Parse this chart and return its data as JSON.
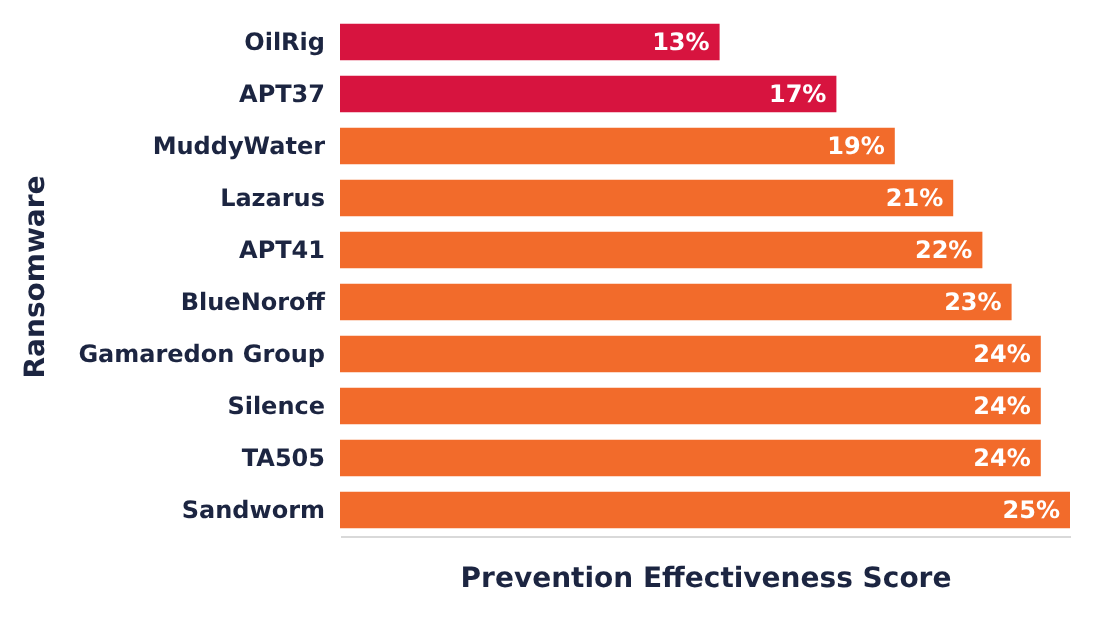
{
  "chart_data": {
    "type": "bar",
    "orientation": "horizontal",
    "xlabel": "Prevention Effectiveness Score",
    "ylabel": "Ransomware",
    "categories": [
      "OilRig",
      "APT37",
      "MuddyWater",
      "Lazarus",
      "APT41",
      "BlueNoroff",
      "Gamaredon Group",
      "Silence",
      "TA505",
      "Sandworm"
    ],
    "values": [
      13,
      17,
      19,
      21,
      22,
      23,
      24,
      24,
      24,
      25
    ],
    "value_labels": [
      "13%",
      "17%",
      "19%",
      "21%",
      "22%",
      "23%",
      "24%",
      "24%",
      "24%",
      "25%"
    ],
    "colors": [
      "#d7143f",
      "#d7143f",
      "#f26b2b",
      "#f26b2b",
      "#f26b2b",
      "#f26b2b",
      "#f26b2b",
      "#f26b2b",
      "#f26b2b",
      "#f26b2b"
    ]
  }
}
